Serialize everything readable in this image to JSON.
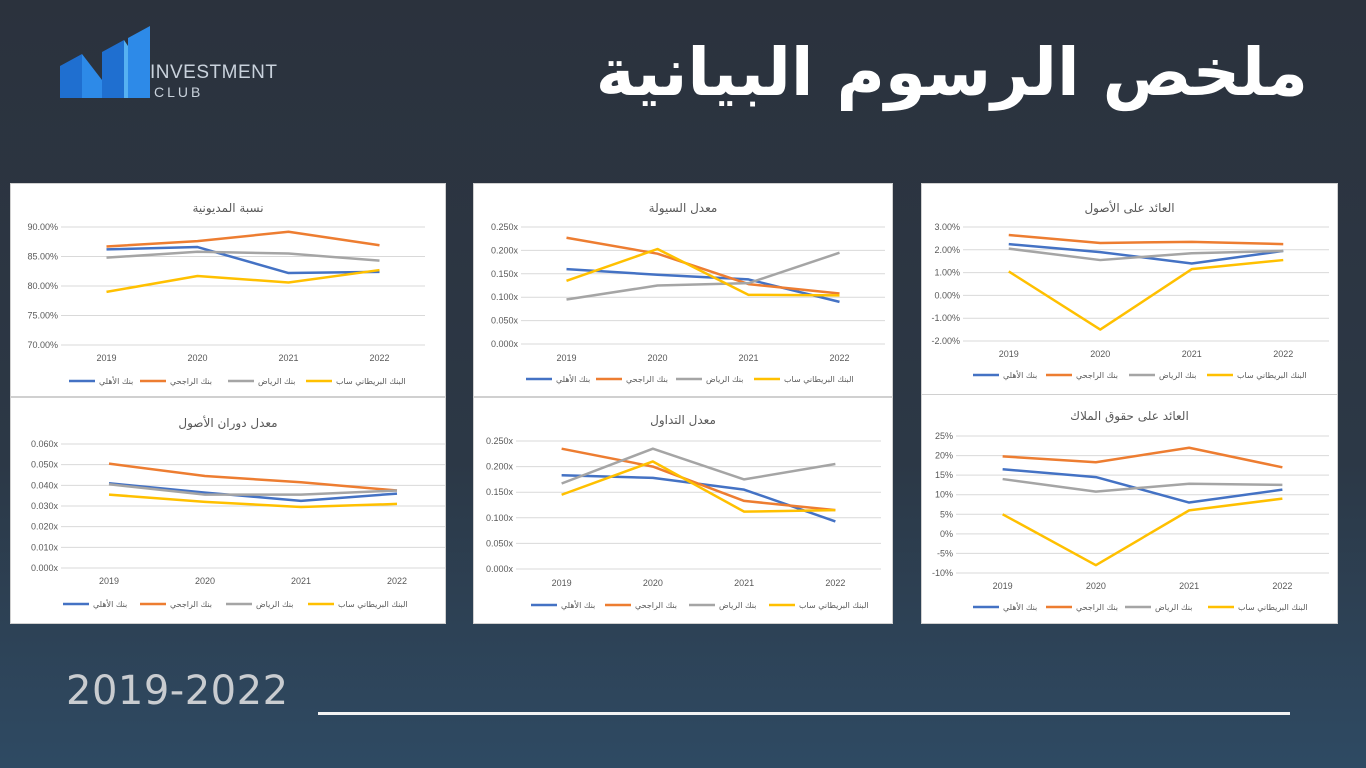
{
  "header": {
    "title": "ملخص الرسوم البيانية",
    "logo_line1": "INVESTMENT",
    "logo_line2": "CLUB"
  },
  "footer": {
    "year_range": "2019-2022"
  },
  "colors": {
    "bank_alahli": "#4472c4",
    "bank_alrajhi": "#ed7d31",
    "bank_riyad": "#a5a5a5",
    "bank_sabb": "#ffc000"
  },
  "chart_data": [
    {
      "id": "debt",
      "type": "line",
      "title": "نسبة المديونية",
      "categories": [
        "2019",
        "2020",
        "2021",
        "2022"
      ],
      "ylim": [
        70,
        90
      ],
      "yticks": [
        "70.00%",
        "75.00%",
        "80.00%",
        "85.00%",
        "90.00%"
      ],
      "series": [
        {
          "name": "بنك الأهلي",
          "values": [
            86.2,
            86.6,
            82.2,
            82.4
          ]
        },
        {
          "name": "بنك الراجحي",
          "values": [
            86.7,
            87.6,
            89.2,
            86.9
          ]
        },
        {
          "name": "بنك الرياض",
          "values": [
            84.8,
            85.8,
            85.5,
            84.3
          ]
        },
        {
          "name": "البنك البريطاني ساب",
          "values": [
            79.0,
            81.7,
            80.6,
            82.7
          ]
        }
      ]
    },
    {
      "id": "liquidity",
      "type": "line",
      "title": "معدل السيولة",
      "categories": [
        "2019",
        "2020",
        "2021",
        "2022"
      ],
      "ylim": [
        0,
        0.25
      ],
      "yticks": [
        "0.000x",
        "0.050x",
        "0.100x",
        "0.150x",
        "0.200x",
        "0.250x"
      ],
      "series": [
        {
          "name": "بنك الأهلي",
          "values": [
            0.16,
            0.148,
            0.138,
            0.09
          ]
        },
        {
          "name": "بنك الراجحي",
          "values": [
            0.227,
            0.193,
            0.128,
            0.108
          ]
        },
        {
          "name": "بنك الرياض",
          "values": [
            0.095,
            0.125,
            0.13,
            0.195
          ]
        },
        {
          "name": "البنك البريطاني ساب",
          "values": [
            0.135,
            0.203,
            0.105,
            0.104
          ]
        }
      ]
    },
    {
      "id": "roa",
      "type": "line",
      "title": "العائد على الأصول",
      "categories": [
        "2019",
        "2020",
        "2021",
        "2022"
      ],
      "ylim": [
        -2,
        3
      ],
      "yticks": [
        "-2.00%",
        "-1.00%",
        "0.00%",
        "1.00%",
        "2.00%",
        "3.00%"
      ],
      "series": [
        {
          "name": "بنك الأهلي",
          "values": [
            2.25,
            1.9,
            1.4,
            1.95
          ]
        },
        {
          "name": "بنك الراجحي",
          "values": [
            2.65,
            2.3,
            2.35,
            2.25
          ]
        },
        {
          "name": "بنك الرياض",
          "values": [
            2.05,
            1.55,
            1.85,
            1.95
          ]
        },
        {
          "name": "البنك البريطاني ساب",
          "values": [
            1.05,
            -1.5,
            1.15,
            1.55
          ]
        }
      ]
    },
    {
      "id": "asset_turnover",
      "type": "line",
      "title": "معدل دوران الأصول",
      "categories": [
        "2019",
        "2020",
        "2021",
        "2022"
      ],
      "ylim": [
        0,
        0.06
      ],
      "yticks": [
        "0.000x",
        "0.010x",
        "0.020x",
        "0.030x",
        "0.040x",
        "0.050x",
        "0.060x"
      ],
      "series": [
        {
          "name": "بنك الأهلي",
          "values": [
            0.041,
            0.0365,
            0.0325,
            0.036
          ]
        },
        {
          "name": "بنك الراجحي",
          "values": [
            0.0505,
            0.0445,
            0.0415,
            0.0375
          ]
        },
        {
          "name": "بنك الرياض",
          "values": [
            0.0405,
            0.0355,
            0.0355,
            0.0375
          ]
        },
        {
          "name": "البنك البريطاني ساب",
          "values": [
            0.0355,
            0.032,
            0.0295,
            0.031
          ]
        }
      ]
    },
    {
      "id": "current_ratio",
      "type": "line",
      "title": "معدل التداول",
      "categories": [
        "2019",
        "2020",
        "2021",
        "2022"
      ],
      "ylim": [
        0,
        0.25
      ],
      "yticks": [
        "0.000x",
        "0.050x",
        "0.100x",
        "0.150x",
        "0.200x",
        "0.250x"
      ],
      "series": [
        {
          "name": "بنك الأهلي",
          "values": [
            0.183,
            0.178,
            0.155,
            0.093
          ]
        },
        {
          "name": "بنك الراجحي",
          "values": [
            0.235,
            0.2,
            0.133,
            0.115
          ]
        },
        {
          "name": "بنك الرياض",
          "values": [
            0.167,
            0.235,
            0.175,
            0.205
          ]
        },
        {
          "name": "البنك البريطاني ساب",
          "values": [
            0.145,
            0.21,
            0.112,
            0.115
          ]
        }
      ]
    },
    {
      "id": "roe",
      "type": "line",
      "title": "العائد على حقوق الملاك",
      "categories": [
        "2019",
        "2020",
        "2021",
        "2022"
      ],
      "ylim": [
        -10,
        25
      ],
      "yticks": [
        "-10%",
        "-5%",
        "0%",
        "5%",
        "10%",
        "15%",
        "20%",
        "25%"
      ],
      "series": [
        {
          "name": "بنك الأهلي",
          "values": [
            16.5,
            14.5,
            8.0,
            11.3
          ]
        },
        {
          "name": "بنك الراجحي",
          "values": [
            19.8,
            18.3,
            22.0,
            17.0
          ]
        },
        {
          "name": "بنك الرياض",
          "values": [
            14.0,
            10.8,
            12.8,
            12.5
          ]
        },
        {
          "name": "البنك البريطاني ساب",
          "values": [
            5.0,
            -8.0,
            6.0,
            9.0
          ]
        }
      ]
    }
  ]
}
